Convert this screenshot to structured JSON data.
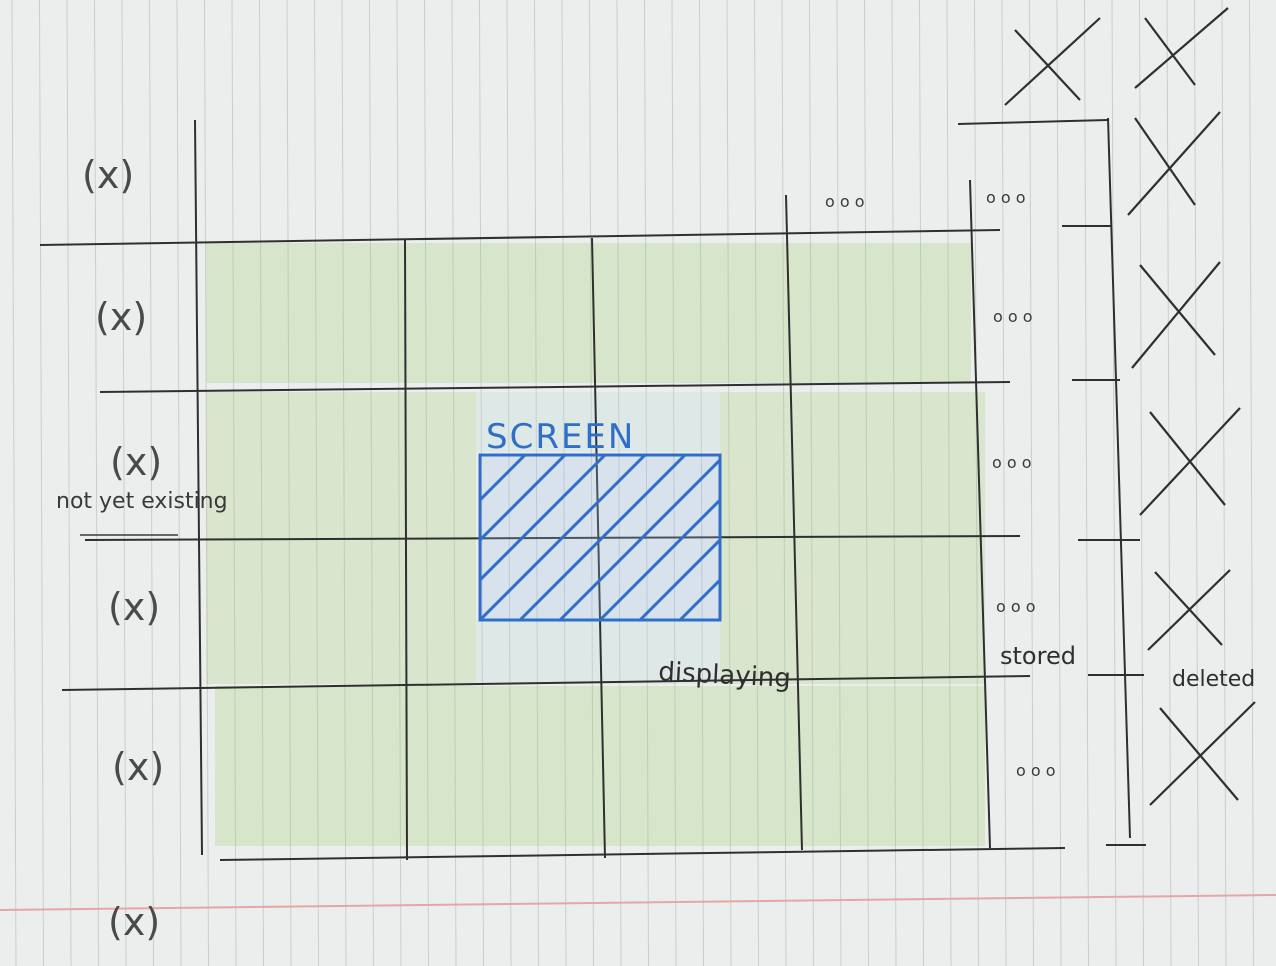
{
  "labels": {
    "screen": "SCREEN",
    "displaying": "displaying",
    "not_yet_existing": "not yet existing",
    "stored": "stored",
    "deleted": "deleted",
    "placeholder_x": "(x)",
    "ellipsis": "o o o"
  },
  "colors": {
    "paper": "#eceeee",
    "rule_line": "#c9cdcf",
    "margin_line": "#e6a6a6",
    "pencil": "#2f2f2f",
    "green": "#9cc96a",
    "screen_blue": "#2f6fc9"
  }
}
